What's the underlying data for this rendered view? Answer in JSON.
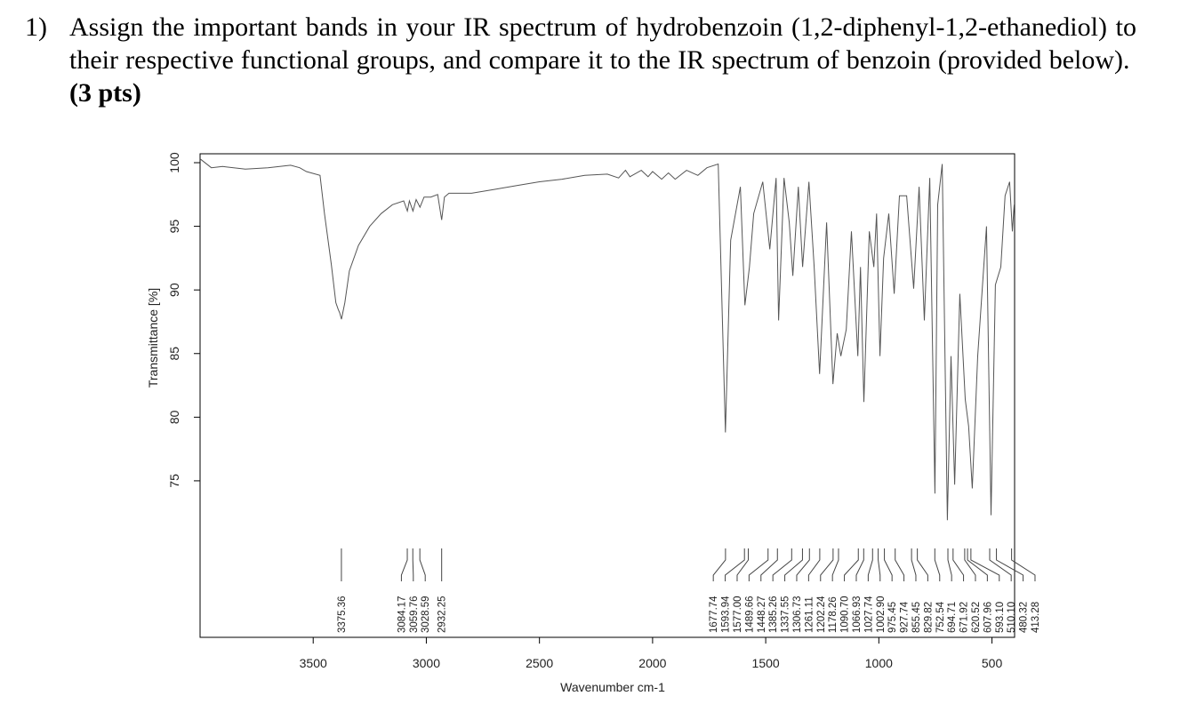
{
  "question": {
    "number": "1)",
    "text": "Assign the important bands in your IR spectrum of hydrobenzoin (1,2-diphenyl-1,2-ethanediol) to their respective functional groups, and compare it to the IR spectrum of benzoin (provided below).",
    "points": "(3 pts)"
  },
  "chart_data": {
    "type": "line",
    "x_label": "Wavenumber cm-1",
    "y_label": "Transmittance [%]",
    "color": "#555555",
    "xlim": [
      4000,
      400
    ],
    "ylim": [
      62.7,
      100.7
    ],
    "xticks": [
      3500,
      3000,
      2500,
      2000,
      1500,
      1000,
      500
    ],
    "yticks": [
      75,
      80,
      85,
      90,
      95,
      100
    ],
    "x": [
      4000,
      3950,
      3900,
      3800,
      3700,
      3600,
      3560,
      3530,
      3470,
      3450,
      3420,
      3400,
      3390,
      3383,
      3375,
      3360,
      3340,
      3300,
      3250,
      3200,
      3150,
      3100,
      3084,
      3075,
      3059,
      3045,
      3028,
      3010,
      2980,
      2950,
      2932,
      2920,
      2900,
      2800,
      2700,
      2600,
      2500,
      2400,
      2300,
      2200,
      2150,
      2120,
      2100,
      2050,
      2020,
      2000,
      1960,
      1930,
      1900,
      1850,
      1800,
      1760,
      1710,
      1678,
      1655,
      1612,
      1592,
      1572,
      1553,
      1513,
      1482,
      1454,
      1443,
      1419,
      1396,
      1380,
      1356,
      1337,
      1309,
      1286,
      1262,
      1231,
      1203,
      1184,
      1168,
      1144,
      1121,
      1093,
      1081,
      1066,
      1042,
      1022,
      1010,
      995,
      979,
      956,
      932,
      909,
      877,
      846,
      822,
      799,
      775,
      752,
      740,
      720,
      697,
      681,
      665,
      642,
      618,
      603,
      587,
      563,
      524,
      504,
      485,
      461,
      442,
      422,
      410,
      402
    ],
    "values": [
      100.3,
      99.6,
      99.7,
      99.5,
      99.6,
      99.8,
      99.6,
      99.3,
      99.0,
      96,
      92,
      89,
      88.5,
      88.2,
      87.7,
      89,
      91.5,
      93.5,
      95,
      96,
      96.7,
      97,
      96.2,
      97.0,
      96.2,
      97.1,
      96.5,
      97.3,
      97.3,
      97.5,
      95.5,
      97.3,
      97.6,
      97.6,
      97.9,
      98.2,
      98.5,
      98.7,
      99,
      99.1,
      98.8,
      99.4,
      98.9,
      99.4,
      98.9,
      99.3,
      98.7,
      99.2,
      98.7,
      99.4,
      99.0,
      99.6,
      99.9,
      78.8,
      93.9,
      98.1,
      88.8,
      91.8,
      96,
      98.5,
      93.2,
      98.8,
      87.6,
      98.8,
      95.3,
      91.1,
      98.1,
      91.8,
      98.5,
      91.8,
      83.4,
      95.3,
      82.6,
      86.6,
      84.8,
      86.9,
      94.6,
      84.8,
      91.8,
      81.2,
      94.6,
      91.8,
      96,
      84.8,
      92.5,
      96,
      89.7,
      97.4,
      97.4,
      90.1,
      98.1,
      87.6,
      98.8,
      74,
      96.7,
      99.9,
      71.9,
      84.8,
      74.7,
      89.7,
      81.4,
      79.3,
      74.4,
      84.8,
      95,
      72.3,
      90.4,
      91.8,
      97.4,
      98.5,
      94.6,
      96.7
    ],
    "peaks": [
      3375.36,
      3084.17,
      3059.76,
      3028.59,
      2932.25,
      1677.74,
      1593.94,
      {
        "value": 1577,
        "label": "1577.00"
      },
      1489.66,
      1448.27,
      1385.26,
      1337.55,
      1306.73,
      1261.11,
      1202.24,
      1178.26,
      {
        "value": 1090.7,
        "label": "1090.70"
      },
      1066.93,
      1027.74,
      {
        "value": 1002.9,
        "label": "1002.90"
      },
      975.45,
      927.74,
      855.45,
      829.82,
      752.54,
      694.71,
      671.92,
      620.52,
      607.96,
      {
        "value": 593.1,
        "label": "593.10"
      },
      {
        "value": 510.1,
        "label": "510.10"
      },
      480.32,
      413.28
    ]
  }
}
